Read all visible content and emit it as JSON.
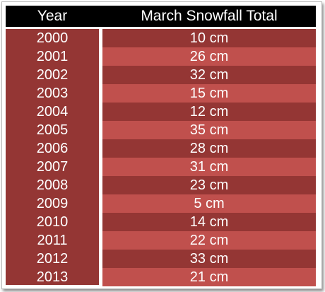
{
  "chart_data": {
    "type": "table",
    "columns": [
      "Year",
      "March Snowfall Total"
    ],
    "rows": [
      {
        "year": "2000",
        "value": "10 cm"
      },
      {
        "year": "2001",
        "value": "26 cm"
      },
      {
        "year": "2002",
        "value": "32 cm"
      },
      {
        "year": "2003",
        "value": "15 cm"
      },
      {
        "year": "2004",
        "value": "12 cm"
      },
      {
        "year": "2005",
        "value": "35 cm"
      },
      {
        "year": "2006",
        "value": "28 cm"
      },
      {
        "year": "2007",
        "value": "31 cm"
      },
      {
        "year": "2008",
        "value": "23 cm"
      },
      {
        "year": "2009",
        "value": "5 cm"
      },
      {
        "year": "2010",
        "value": "14 cm"
      },
      {
        "year": "2011",
        "value": "22 cm"
      },
      {
        "year": "2012",
        "value": "33 cm"
      },
      {
        "year": "2013",
        "value": "21 cm"
      }
    ]
  },
  "colors": {
    "header_bg": "#000000",
    "header_text": "#ffffff",
    "row_dark": "#943634",
    "row_light": "#c0504d",
    "cell_text": "#ffffff"
  }
}
